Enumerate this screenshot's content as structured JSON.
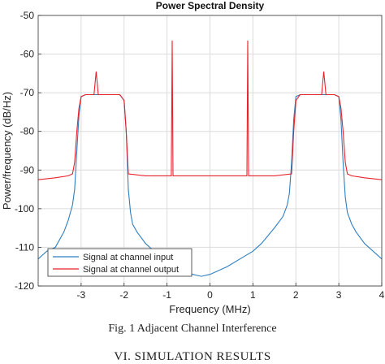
{
  "chart_data": {
    "type": "line",
    "title": "Power Spectral Density",
    "xlabel": "Frequency (MHz)",
    "ylabel": "Power/frequency (dB/Hz)",
    "xlim": [
      -4,
      4
    ],
    "ylim": [
      -120,
      -50
    ],
    "xticks": [
      -3,
      -2,
      -1,
      0,
      1,
      2,
      3,
      4
    ],
    "yticks": [
      -50,
      -60,
      -70,
      -80,
      -90,
      -100,
      -110,
      -120
    ],
    "grid": true,
    "legend_position": "bottom-left",
    "series": [
      {
        "name": "Signal at channel input",
        "color": "#2f7fc1",
        "x": [
          -4,
          -3.8,
          -3.6,
          -3.4,
          -3.3,
          -3.2,
          -3.15,
          -3.1,
          -3.05,
          -3.0,
          -2.9,
          -2.7,
          -2.6,
          -2.5,
          -2.3,
          -2.1,
          -2.0,
          -1.95,
          -1.9,
          -1.85,
          -1.8,
          -1.7,
          -1.5,
          -1.2,
          -1.0,
          -0.7,
          -0.4,
          -0.2,
          0.0,
          0.2,
          0.4,
          0.7,
          1.0,
          1.2,
          1.5,
          1.7,
          1.8,
          1.85,
          1.9,
          1.95,
          2.0,
          2.1,
          2.3,
          2.5,
          2.6,
          2.7,
          2.9,
          3.0,
          3.05,
          3.1,
          3.15,
          3.2,
          3.3,
          3.4,
          3.6,
          3.8,
          4.0
        ],
        "values": [
          -113,
          -111,
          -110,
          -106,
          -103,
          -99,
          -95,
          -85,
          -76,
          -71,
          -70.5,
          -70.5,
          -70.5,
          -70.5,
          -70.5,
          -70.5,
          -72,
          -80,
          -95,
          -101,
          -104,
          -106,
          -109,
          -112,
          -114,
          -116,
          -117,
          -117.5,
          -117,
          -116,
          -115,
          -113,
          -111,
          -109,
          -105,
          -102,
          -99,
          -96,
          -88,
          -77,
          -71,
          -70.5,
          -70.5,
          -70.5,
          -70.5,
          -70.5,
          -70.5,
          -71,
          -77,
          -88,
          -97,
          -101,
          -104,
          -106,
          -109,
          -111,
          -113
        ]
      },
      {
        "name": "Signal at channel output",
        "color": "#e8212b",
        "x": [
          -4,
          -3.6,
          -3.3,
          -3.2,
          -3.15,
          -3.1,
          -3.05,
          -3.0,
          -2.9,
          -2.7,
          -2.65,
          -2.6,
          -2.5,
          -2.3,
          -2.1,
          -2.0,
          -1.95,
          -1.9,
          -1.5,
          -1.2,
          -0.9,
          -0.88,
          -0.86,
          -0.5,
          0.0,
          0.5,
          0.86,
          0.88,
          0.9,
          1.2,
          1.5,
          1.9,
          1.95,
          2.0,
          2.1,
          2.3,
          2.5,
          2.6,
          2.65,
          2.7,
          2.9,
          3.0,
          3.05,
          3.1,
          3.15,
          3.2,
          3.3,
          3.6,
          4.0
        ],
        "values": [
          -92.5,
          -92,
          -91.5,
          -91,
          -88,
          -80,
          -74,
          -71,
          -70.5,
          -70.5,
          -64.5,
          -70.5,
          -70.5,
          -70.5,
          -70.5,
          -72,
          -80,
          -91,
          -91.5,
          -91.5,
          -91.5,
          -56.5,
          -91.5,
          -91.5,
          -91.5,
          -91.5,
          -91.5,
          -56.5,
          -91.5,
          -91.5,
          -91.5,
          -91,
          -80,
          -72,
          -70.5,
          -70.5,
          -70.5,
          -70.5,
          -64.5,
          -70.5,
          -70.5,
          -71,
          -74,
          -80,
          -88,
          -91,
          -91.5,
          -92,
          -92.5
        ]
      }
    ]
  },
  "caption": "Fig. 1 Adjacent Channel Interference",
  "section_heading": "VI. SIMULATION RESULTS"
}
